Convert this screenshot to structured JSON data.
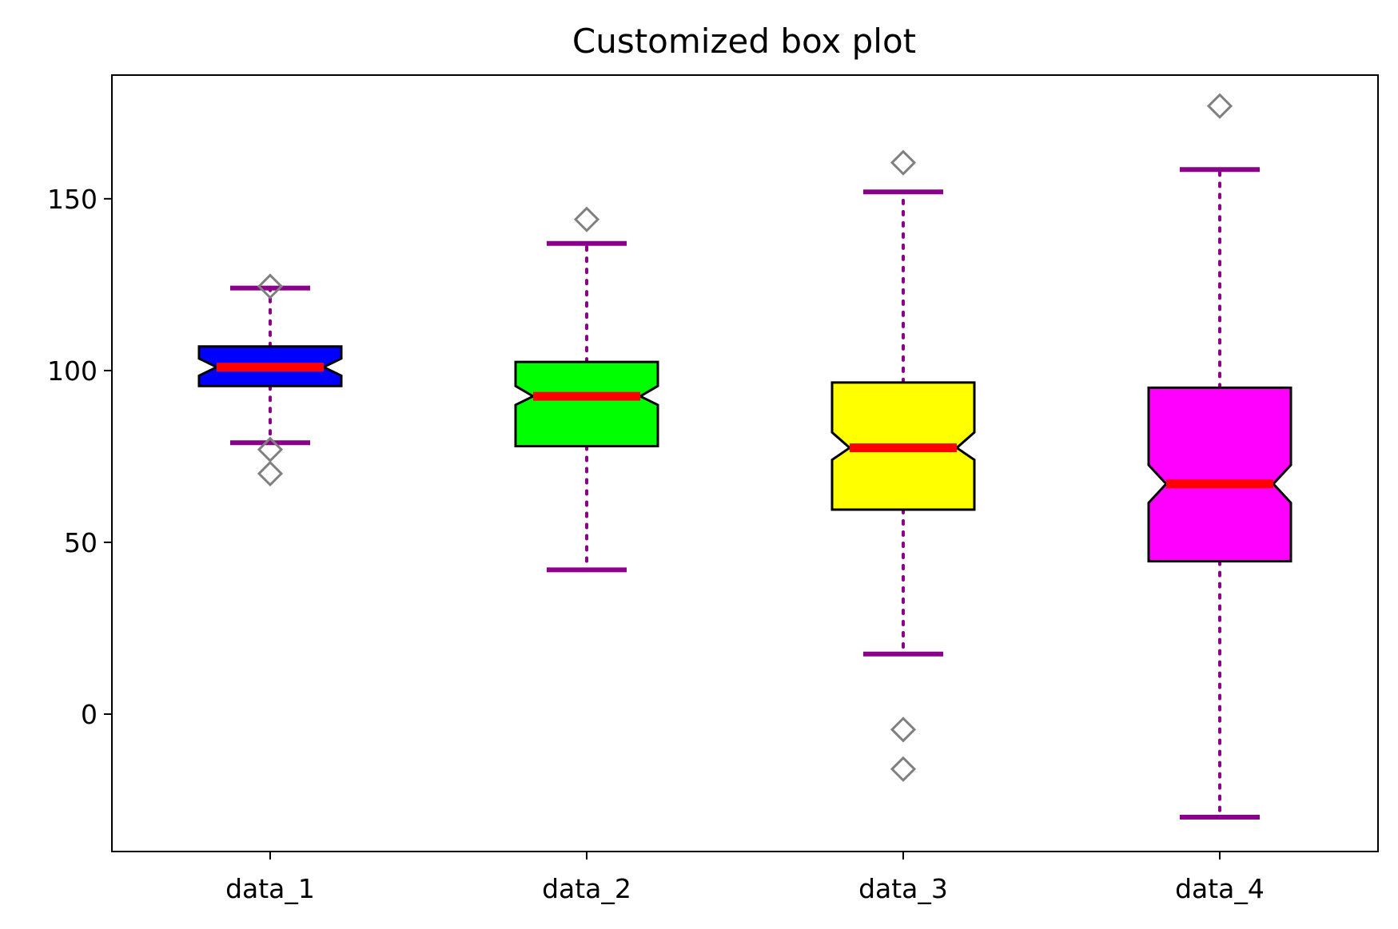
{
  "chart_data": {
    "type": "box",
    "title": "Customized box plot",
    "xlabel": "",
    "ylabel": "",
    "categories": [
      "data_1",
      "data_2",
      "data_3",
      "data_4"
    ],
    "ylim": [
      -40,
      186
    ],
    "yticks": [
      0,
      50,
      100,
      150
    ],
    "notched": true,
    "grid": false,
    "series": [
      {
        "label": "data_1",
        "whisker_low": 79,
        "q1": 95.5,
        "median": 101,
        "q3": 107,
        "whisker_high": 124,
        "notch_low": 98.5,
        "notch_high": 103.5,
        "outliers": [
          124.5,
          77,
          70
        ],
        "fill": "#0000ff"
      },
      {
        "label": "data_2",
        "whisker_low": 42,
        "q1": 78,
        "median": 92.5,
        "q3": 102.5,
        "whisker_high": 137,
        "notch_low": 90,
        "notch_high": 95.5,
        "outliers": [
          144
        ],
        "fill": "#00ff00"
      },
      {
        "label": "data_3",
        "whisker_low": 17.5,
        "q1": 59.5,
        "median": 77.5,
        "q3": 96.5,
        "whisker_high": 152,
        "notch_low": 74,
        "notch_high": 82,
        "outliers": [
          160.5,
          -4.5,
          -16
        ],
        "fill": "#ffff00"
      },
      {
        "label": "data_4",
        "whisker_low": -30,
        "q1": 44.5,
        "median": 67,
        "q3": 95,
        "whisker_high": 158.5,
        "notch_low": 61.5,
        "notch_high": 72.5,
        "outliers": [
          177
        ],
        "fill": "#ff00ff"
      }
    ],
    "style": {
      "median_color": "#ff0000",
      "whisker_color": "#8b008b",
      "cap_color": "#8b008b",
      "outlier_color": "#808080",
      "box_edge_color": "#000000"
    }
  }
}
